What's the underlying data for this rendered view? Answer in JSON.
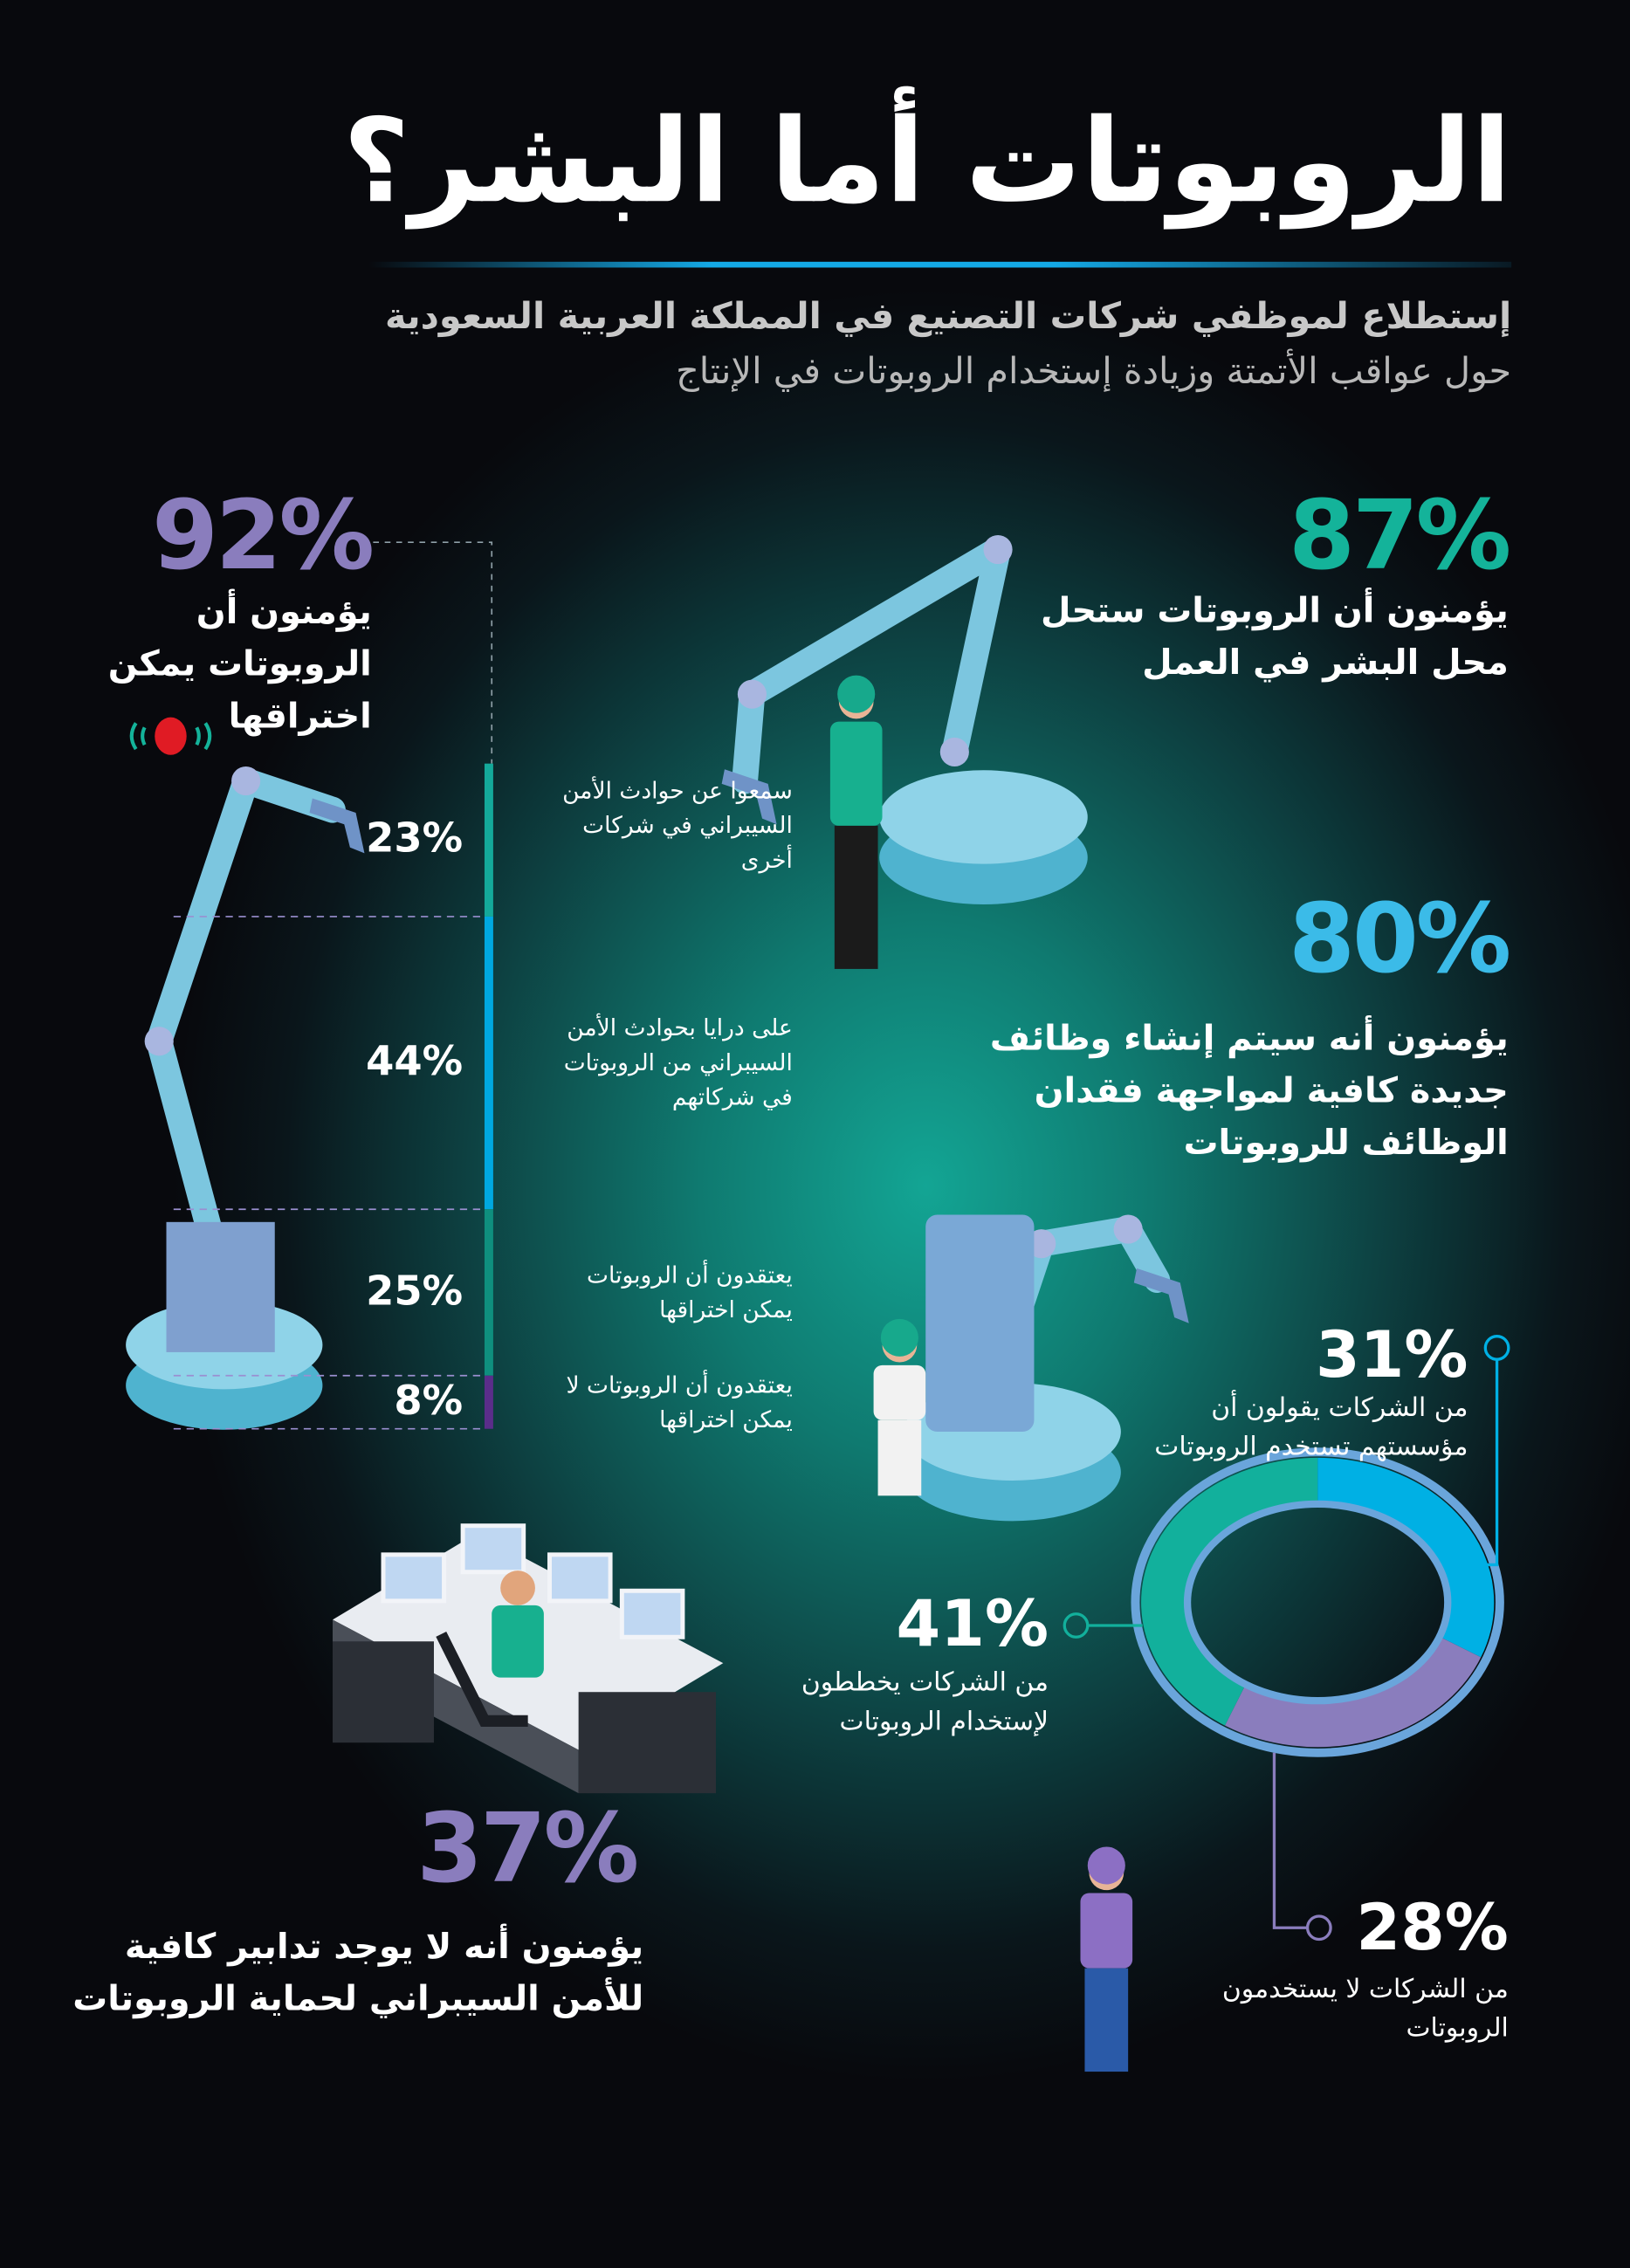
{
  "title": "الروبوتات أما البشر؟",
  "subtitle": {
    "line1": "إستطلاع لموظفي شركات التصنيع في المملكة العربية السعودية",
    "line2": "حول عواقب الأتمتة وزيادة إستخدام الروبوتات في الإنتاج"
  },
  "colors": {
    "teal": "#14b39a",
    "blue": "#00b0e4",
    "purple": "#8a7dbd",
    "dark_purple": "#5a2d8a",
    "accent_line": "#14a9e6",
    "bug": "#e01b24"
  },
  "stats": {
    "hackable": {
      "value": "92%",
      "text": [
        "يؤمنون أن",
        "الروبوتات يمكن",
        "اختراقها"
      ],
      "icon": "bug-icon"
    },
    "replace": {
      "value": "87%",
      "text": [
        "يؤمنون أن الروبوتات ستحل",
        "محل البشر في العمل"
      ]
    },
    "new_jobs": {
      "value": "80%",
      "text": [
        "يؤمنون أنه سيتم إنشاء وظائف",
        "جديدة كافية لمواجهة فقدان",
        "الوظائف للروبوتات"
      ]
    },
    "no_measures": {
      "value": "37%",
      "text": [
        "يؤمنون أنه لا يوجد تدابير كافية",
        "للأمن السيبراني لحماية الروبوتات"
      ]
    }
  },
  "chart_data": [
    {
      "type": "bar",
      "orientation": "stacked-vertical",
      "categories": [
        "سمعوا عن حوادث الأمن السيبراني في شركات أخرى",
        "على درايا بحوادث الأمن السيبراني من الروبوتات في شركاتهم",
        "يعتقدون أن الروبوتات يمكن اختراقها",
        "يعتقدون أن الروبوتات لا يمكن اختراقها"
      ],
      "values": [
        23,
        44,
        25,
        8
      ],
      "labels": [
        "23%",
        "44%",
        "25%",
        "8%"
      ],
      "colors": [
        "#14a99a",
        "#00a8e0",
        "#0f8f7e",
        "#5a2d8a"
      ]
    },
    {
      "type": "pie",
      "style": "donut",
      "categories": [
        "من الشركات يقولون أن مؤسستهم تستخدم الروبوتات",
        "من الشركات يخططون لإستخدام الروبوتات",
        "من الشركات لا يستخدمون الروبوتات"
      ],
      "values": [
        31,
        41,
        28
      ],
      "labels": [
        "31%",
        "41%",
        "28%"
      ],
      "colors": [
        "#00b0e4",
        "#12b09c",
        "#8a7dbd"
      ]
    }
  ],
  "donut_text": {
    "uses": [
      "من الشركات يقولون أن",
      "مؤسستهم تستخدم الروبوتات"
    ],
    "plans": [
      "من الشركات يخططون",
      "لإستخدام الروبوتات"
    ],
    "not_use": [
      "من الشركات لا يستخدمون",
      "الروبوتات"
    ]
  },
  "bar_text": [
    [
      "سمعوا عن حوادث الأمن",
      "السيبراني في شركات",
      "أخرى"
    ],
    [
      "على درايا بحوادث الأمن",
      "السيبراني من الروبوتات",
      "في شركاتهم"
    ],
    [
      "يعتقدون أن الروبوتات",
      "يمكن اختراقها"
    ],
    [
      "يعتقدون أن الروبوتات لا",
      "يمكن اختراقها"
    ]
  ]
}
